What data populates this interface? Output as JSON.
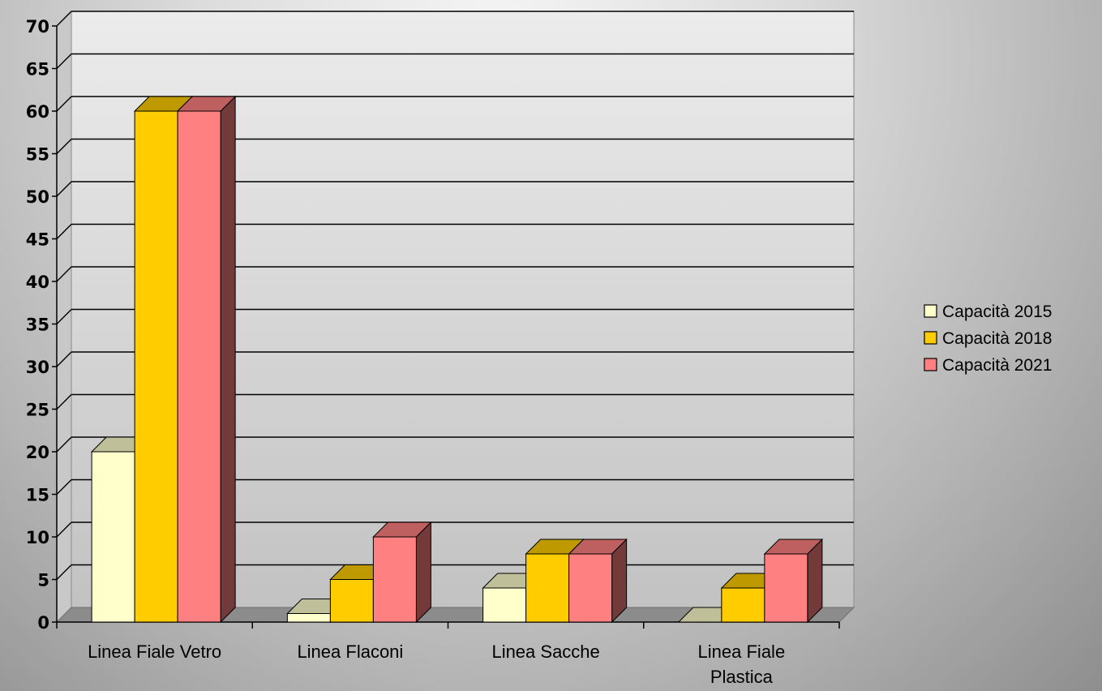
{
  "chart_data": {
    "type": "bar",
    "style": "3d-clustered-column",
    "categories": [
      [
        "Linea Fiale Vetro"
      ],
      [
        "Linea Flaconi"
      ],
      [
        "Linea Sacche"
      ],
      [
        "Linea Fiale",
        "Plastica"
      ]
    ],
    "series": [
      {
        "name": "Capacità 2015",
        "values": [
          20,
          1,
          4,
          0
        ],
        "color": "#ffffcc"
      },
      {
        "name": "Capacità 2018",
        "values": [
          60,
          5,
          8,
          4
        ],
        "color": "#ffcc00"
      },
      {
        "name": "Capacità 2021",
        "values": [
          60,
          10,
          8,
          8
        ],
        "color": "#ff8080"
      }
    ],
    "ylim": [
      0,
      70
    ],
    "yticks": [
      "0",
      "5",
      "10",
      "15",
      "20",
      "25",
      "30",
      "35",
      "40",
      "45",
      "50",
      "55",
      "60",
      "65",
      "70"
    ],
    "grid": true,
    "legend_position": "right"
  }
}
